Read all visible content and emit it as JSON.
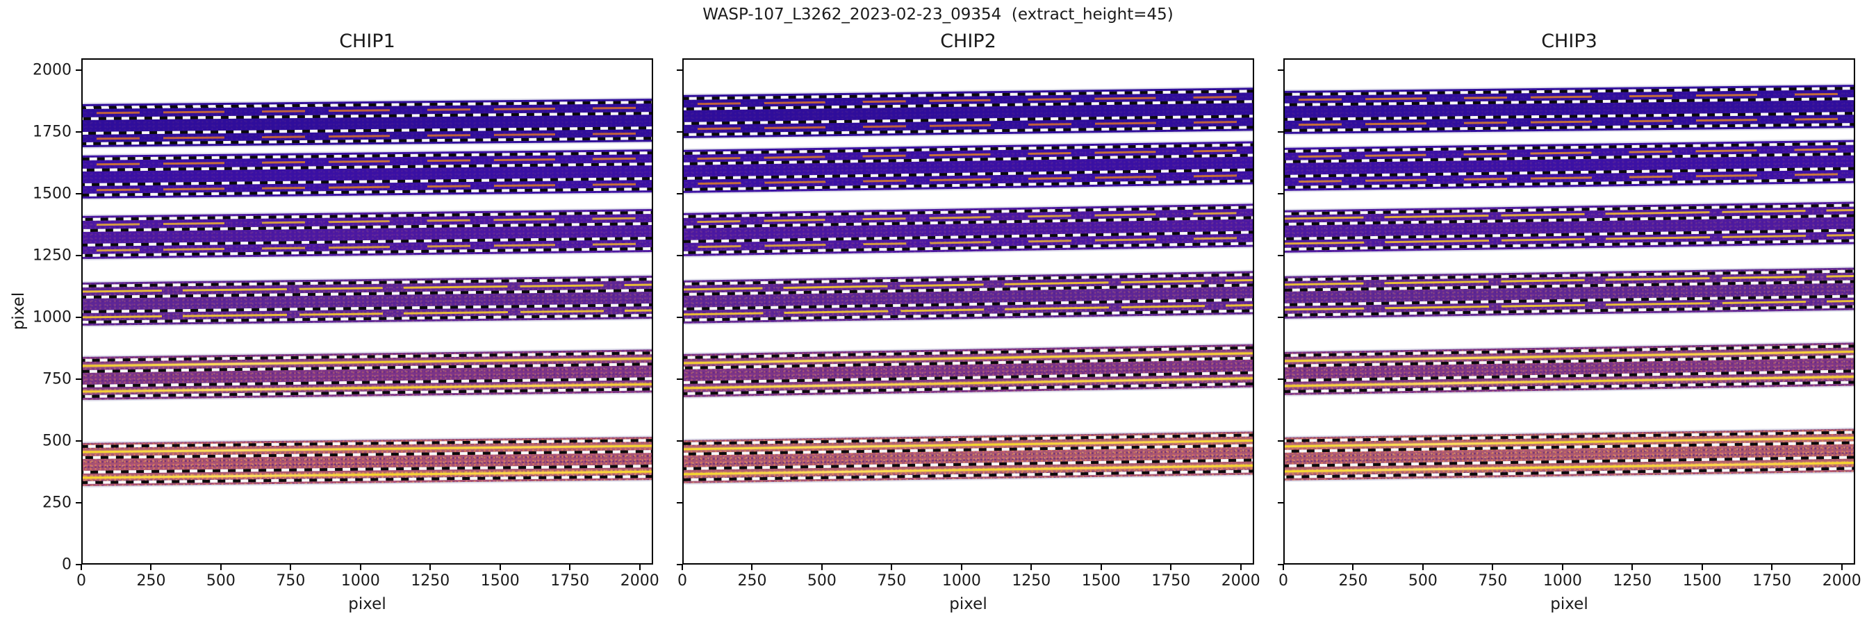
{
  "figure": {
    "suptitle": "WASP-107_L3262_2023-02-23_09354  (extract_height=45)",
    "background": "#ffffff",
    "spine_color": "#000000",
    "dash_colors": [
      "#0a0a0a",
      "#f8f8f8"
    ]
  },
  "chart_data": {
    "type": "heatmap",
    "title": "WASP-107_L3262_2023-02-23_09354  (extract_height=45)",
    "extract_height": 45,
    "legend": "none",
    "grid": false,
    "panels": [
      {
        "title": "CHIP1",
        "xlabel": "pixel",
        "ylabel": "pixel",
        "xlim": [
          0,
          2048
        ],
        "ylim": [
          0,
          2048
        ],
        "xticks": [
          0,
          250,
          500,
          750,
          1000,
          1250,
          1500,
          1750,
          2000
        ],
        "yticks": [
          0,
          250,
          500,
          750,
          1000,
          1250,
          1500,
          1750,
          2000
        ],
        "orders": [
          {
            "y_bottom": 1692,
            "y_top": 1868,
            "rise": 22,
            "color": "#2f0d9b",
            "trace_color": "#cf6a33",
            "trace_style": "broken",
            "speckle": 0.06
          },
          {
            "y_bottom": 1482,
            "y_top": 1658,
            "rise": 25,
            "color": "#3a10a4",
            "trace_color": "#d4782f",
            "trace_style": "broken",
            "speckle": 0.08
          },
          {
            "y_bottom": 1236,
            "y_top": 1412,
            "rise": 28,
            "color": "#4c18a2",
            "trace_color": "#e2a93a",
            "trace_style": "broken",
            "speckle": 0.13
          },
          {
            "y_bottom": 966,
            "y_top": 1142,
            "rise": 28,
            "color": "#5e2696",
            "trace_color": "#eec334",
            "trace_style": "semi",
            "speckle": 0.2
          },
          {
            "y_bottom": 662,
            "y_top": 838,
            "rise": 30,
            "color": "#7c3488",
            "trace_color": "#f1cb2e",
            "trace_style": "solid",
            "speckle": 0.32
          },
          {
            "y_bottom": 312,
            "y_top": 488,
            "rise": 25,
            "color": "#a85273",
            "trace_color": "#f4d62a",
            "trace_style": "solid",
            "speckle": 0.55
          }
        ]
      },
      {
        "title": "CHIP2",
        "xlabel": "pixel",
        "ylabel": "pixel",
        "xlim": [
          0,
          2048
        ],
        "ylim": [
          0,
          2048
        ],
        "xticks": [
          0,
          250,
          500,
          750,
          1000,
          1250,
          1500,
          1750,
          2000
        ],
        "yticks": [
          0,
          250,
          500,
          750,
          1000,
          1250,
          1500,
          1750,
          2000
        ],
        "orders": [
          {
            "y_bottom": 1730,
            "y_top": 1905,
            "rise": 30,
            "color": "#2f0d9b",
            "trace_color": "#cf6a33",
            "trace_style": "broken",
            "speckle": 0.06
          },
          {
            "y_bottom": 1505,
            "y_top": 1680,
            "rise": 35,
            "color": "#3a10a4",
            "trace_color": "#d4782f",
            "trace_style": "broken",
            "speckle": 0.09
          },
          {
            "y_bottom": 1250,
            "y_top": 1425,
            "rise": 38,
            "color": "#4c18a2",
            "trace_color": "#e2a93a",
            "trace_style": "broken",
            "speckle": 0.14
          },
          {
            "y_bottom": 975,
            "y_top": 1150,
            "rise": 38,
            "color": "#5e2696",
            "trace_color": "#eec334",
            "trace_style": "semi",
            "speckle": 0.22
          },
          {
            "y_bottom": 675,
            "y_top": 850,
            "rise": 40,
            "color": "#7c3488",
            "trace_color": "#f1cb2e",
            "trace_style": "solid",
            "speckle": 0.34
          },
          {
            "y_bottom": 325,
            "y_top": 500,
            "rise": 35,
            "color": "#a85673",
            "trace_color": "#f4d62a",
            "trace_style": "solid",
            "speckle": 0.55
          }
        ]
      },
      {
        "title": "CHIP3",
        "xlabel": "pixel",
        "ylabel": "pixel",
        "xlim": [
          0,
          2048
        ],
        "ylim": [
          0,
          2048
        ],
        "xticks": [
          0,
          250,
          500,
          750,
          1000,
          1250,
          1500,
          1750,
          2000
        ],
        "yticks": [
          0,
          250,
          500,
          750,
          1000,
          1250,
          1500,
          1750,
          2000
        ],
        "orders": [
          {
            "y_bottom": 1745,
            "y_top": 1920,
            "rise": 25,
            "color": "#300e9d",
            "trace_color": "#d4782f",
            "trace_style": "broken",
            "speckle": 0.07
          },
          {
            "y_bottom": 1515,
            "y_top": 1690,
            "rise": 32,
            "color": "#3c11a5",
            "trace_color": "#d98434",
            "trace_style": "broken",
            "speckle": 0.1
          },
          {
            "y_bottom": 1264,
            "y_top": 1436,
            "rise": 35,
            "color": "#4e1aa0",
            "trace_color": "#e7b03a",
            "trace_style": "semi",
            "speckle": 0.15
          },
          {
            "y_bottom": 995,
            "y_top": 1166,
            "rise": 35,
            "color": "#602894",
            "trace_color": "#efc634",
            "trace_style": "semi",
            "speckle": 0.24
          },
          {
            "y_bottom": 685,
            "y_top": 860,
            "rise": 38,
            "color": "#7e3687",
            "trace_color": "#f1cb2e",
            "trace_style": "solid",
            "speckle": 0.36
          },
          {
            "y_bottom": 335,
            "y_top": 510,
            "rise": 35,
            "color": "#aa5871",
            "trace_color": "#f5d82a",
            "trace_style": "solid",
            "speckle": 0.55
          }
        ]
      }
    ],
    "aperture_layout": {
      "dashed_line_positions_pct_of_band": [
        8,
        33,
        67,
        92
      ],
      "trace_positions_pct_of_band": [
        20.5,
        79.5
      ],
      "note": "two extraction apertures per order, each bounded by black/white dashed lines with a bright trace at its centre"
    }
  }
}
